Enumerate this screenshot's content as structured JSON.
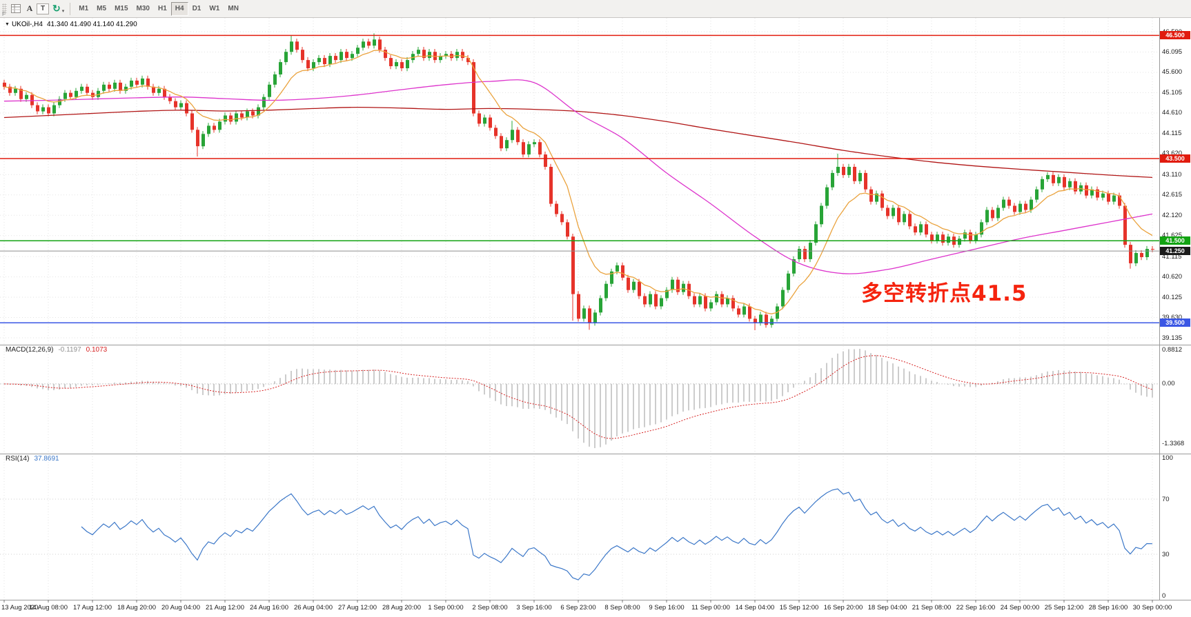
{
  "window": {
    "left_tab": "F"
  },
  "toolbar": {
    "buttons": [
      {
        "id": "text-a",
        "label": "A"
      },
      {
        "id": "frame-t",
        "label": "T"
      }
    ],
    "cycle_icon": "↻",
    "caret": "▾",
    "timeframes": [
      "M1",
      "M5",
      "M15",
      "M30",
      "H1",
      "H4",
      "D1",
      "W1",
      "MN"
    ],
    "active_timeframe": "H4"
  },
  "chart": {
    "menu_arrow": "▼",
    "title": "UKOil-,H4",
    "ohlc_text": "41.340 41.490 41.140 41.290",
    "annotation": {
      "text": "多空转折点41.5",
      "color": "#f5230e"
    },
    "price_axis_labels": [
      "46.590",
      "46.095",
      "45.600",
      "45.105",
      "44.610",
      "44.115",
      "43.620",
      "43.110",
      "42.615",
      "42.120",
      "41.625",
      "41.115",
      "40.620",
      "40.125",
      "39.630",
      "39.135"
    ],
    "levels": [
      {
        "label": "46.500",
        "value": 46.5,
        "color": "#e11b0e"
      },
      {
        "label": "43.500",
        "value": 43.5,
        "color": "#e11b0e"
      },
      {
        "label": "41.500",
        "value": 41.5,
        "color": "#12a312"
      },
      {
        "label": "39.500",
        "value": 39.5,
        "color": "#3a56e4"
      }
    ],
    "current_price": {
      "label": "41.250",
      "value": 41.25,
      "line_color": "#8c8c8c",
      "badge_color": "#1b1b1b"
    },
    "time_axis_labels": [
      "13 Aug 2020",
      "14 Aug 08:00",
      "17 Aug 12:00",
      "18 Aug 20:00",
      "20 Aug 04:00",
      "21 Aug 12:00",
      "24 Aug 16:00",
      "26 Aug 04:00",
      "27 Aug 12:00",
      "28 Aug 20:00",
      "1 Sep 00:00",
      "2 Sep 08:00",
      "3 Sep 16:00",
      "6 Sep 23:00",
      "8 Sep 08:00",
      "9 Sep 16:00",
      "11 Sep 00:00",
      "14 Sep 04:00",
      "15 Sep 12:00",
      "16 Sep 20:00",
      "18 Sep 04:00",
      "21 Sep 08:00",
      "22 Sep 16:00",
      "24 Sep 00:00",
      "25 Sep 12:00",
      "28 Sep 16:00",
      "30 Sep 00:00"
    ]
  },
  "chart_data": {
    "type": "candlestick",
    "title": "UKOil-,H4",
    "symbol": "UKOil-",
    "period": "H4",
    "ylim": [
      39.135,
      46.59
    ],
    "x_span": "13 Aug 2020 - 30 Sep 2020",
    "ohlc_display": {
      "open": "41.340",
      "high": "41.490",
      "low": "41.140",
      "close": "41.290"
    },
    "first_open": 45.35,
    "closes": [
      45.25,
      45.1,
      45.2,
      44.95,
      45.05,
      44.8,
      44.65,
      44.75,
      44.6,
      44.8,
      44.95,
      45.1,
      45.0,
      45.15,
      45.25,
      45.1,
      45.0,
      45.15,
      45.3,
      45.2,
      45.35,
      45.15,
      45.25,
      45.4,
      45.3,
      45.45,
      45.25,
      45.1,
      45.2,
      45.0,
      44.9,
      44.75,
      44.85,
      44.6,
      44.2,
      43.8,
      44.1,
      44.3,
      44.2,
      44.4,
      44.55,
      44.4,
      44.6,
      44.5,
      44.65,
      44.55,
      44.75,
      45.0,
      45.3,
      45.55,
      45.85,
      46.1,
      46.35,
      46.15,
      45.9,
      45.7,
      45.85,
      45.95,
      45.8,
      46.0,
      45.9,
      46.1,
      45.95,
      46.05,
      46.2,
      46.35,
      46.25,
      46.4,
      46.15,
      45.95,
      45.75,
      45.85,
      45.7,
      45.9,
      46.05,
      46.15,
      45.95,
      46.1,
      45.9,
      46.0,
      46.05,
      45.95,
      46.1,
      45.95,
      45.85,
      44.6,
      44.35,
      44.5,
      44.25,
      44.05,
      43.75,
      43.95,
      44.2,
      43.9,
      43.6,
      43.85,
      43.9,
      43.6,
      43.3,
      42.4,
      42.15,
      41.95,
      41.6,
      40.2,
      39.6,
      39.85,
      39.5,
      39.75,
      40.1,
      40.45,
      40.75,
      40.9,
      40.6,
      40.3,
      40.5,
      40.15,
      39.95,
      40.2,
      39.9,
      40.1,
      40.3,
      40.55,
      40.25,
      40.45,
      40.15,
      39.95,
      40.15,
      39.85,
      40.0,
      40.2,
      39.95,
      40.1,
      39.85,
      39.7,
      39.9,
      39.6,
      39.5,
      39.7,
      39.45,
      39.6,
      39.9,
      40.3,
      40.7,
      41.05,
      41.3,
      41.05,
      41.45,
      41.9,
      42.35,
      42.8,
      43.15,
      43.3,
      43.1,
      43.3,
      42.95,
      43.15,
      42.75,
      42.45,
      42.65,
      42.3,
      42.1,
      42.3,
      41.95,
      42.15,
      41.85,
      41.7,
      41.9,
      41.65,
      41.5,
      41.65,
      41.45,
      41.6,
      41.4,
      41.55,
      41.7,
      41.5,
      41.65,
      41.95,
      42.25,
      42.05,
      42.3,
      42.5,
      42.35,
      42.2,
      42.4,
      42.25,
      42.5,
      42.75,
      43.0,
      43.1,
      42.9,
      43.05,
      42.8,
      42.95,
      42.7,
      42.85,
      42.6,
      42.75,
      42.55,
      42.65,
      42.45,
      42.6,
      42.35,
      41.4,
      40.95,
      41.2,
      41.1,
      41.3,
      41.29
    ],
    "candle_rule": {
      "open": "previous_close",
      "default_wick": 0.07
    },
    "wick_overrides": [
      {
        "i": 35,
        "l": 43.55
      },
      {
        "i": 52,
        "h": 46.5
      },
      {
        "i": 67,
        "h": 46.55
      },
      {
        "i": 92,
        "h": 44.42
      },
      {
        "i": 103,
        "l": 39.55
      },
      {
        "i": 106,
        "l": 39.33
      },
      {
        "i": 136,
        "l": 39.32
      },
      {
        "i": 151,
        "h": 43.62
      },
      {
        "i": 204,
        "l": 40.82
      }
    ],
    "colors": {
      "up": "#28a437",
      "down": "#e6332a"
    },
    "overlays": {
      "ma_slow": {
        "color": "#b01414",
        "sample_step": 8,
        "points": [
          44.5,
          44.55,
          44.6,
          44.65,
          44.68,
          44.66,
          44.68,
          44.72,
          44.75,
          44.73,
          44.7,
          44.72,
          44.7,
          44.65,
          44.55,
          44.4,
          44.22,
          44.05,
          43.88,
          43.7,
          43.55,
          43.42,
          43.32,
          43.24,
          43.17,
          43.1,
          43.04
        ]
      },
      "ma_medium": {
        "color": "#dd33cc",
        "sample_step": 8,
        "points": [
          44.9,
          44.92,
          44.95,
          44.98,
          45.0,
          44.96,
          44.92,
          44.96,
          45.05,
          45.18,
          45.3,
          45.38,
          45.35,
          44.6,
          44.0,
          43.15,
          42.4,
          41.6,
          40.95,
          40.7,
          40.8,
          41.05,
          41.3,
          41.55,
          41.75,
          41.95,
          42.15
        ]
      },
      "ma_fast": {
        "color": "#eaa23c",
        "type": "ema",
        "period": 10
      }
    },
    "macd": {
      "label": "MACD(12,26,9)",
      "params": [
        12,
        26,
        9
      ],
      "value_main": "-0.1197",
      "value_signal": "0.1073",
      "axis_labels": [
        "0.8812",
        "0.00",
        "-1.3368"
      ],
      "hist_color": "#b6b6b6",
      "signal_color": "#d62020",
      "value_main_color": "#8f8f8f"
    },
    "rsi": {
      "label": "RSI(14)",
      "period": 14,
      "value": "37.8691",
      "axis_labels": [
        "100",
        "70",
        "30",
        "0"
      ],
      "levels": [
        70,
        30
      ],
      "color": "#3b77c8"
    }
  }
}
